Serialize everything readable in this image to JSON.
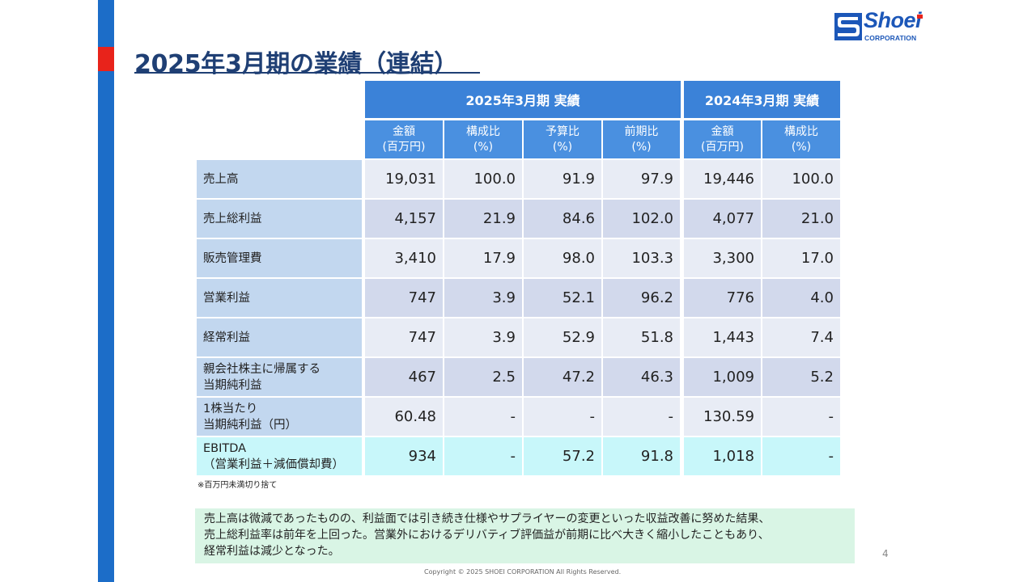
{
  "title": "2025年3月期の業績（連結）",
  "logo": {
    "word": "Shoei",
    "sub": "CORPORATION"
  },
  "table": {
    "group_2025": "2025年3月期 実績",
    "group_2024": "2024年3月期 実績",
    "sub_2025": [
      {
        "l1": "金額",
        "l2": "(百万円)"
      },
      {
        "l1": "構成比",
        "l2": "(%)"
      },
      {
        "l1": "予算比",
        "l2": "(%)"
      },
      {
        "l1": "前期比",
        "l2": "(%)"
      }
    ],
    "sub_2024": [
      {
        "l1": "金額",
        "l2": "(百万円)"
      },
      {
        "l1": "構成比",
        "l2": "(%)"
      }
    ],
    "rows": [
      {
        "label1": "売上高",
        "label2": "",
        "v": [
          "19,031",
          "100.0",
          "91.9",
          "97.9",
          "19,446",
          "100.0"
        ]
      },
      {
        "label1": "売上総利益",
        "label2": "",
        "v": [
          "4,157",
          "21.9",
          "84.6",
          "102.0",
          "4,077",
          "21.0"
        ]
      },
      {
        "label1": "販売管理費",
        "label2": "",
        "v": [
          "3,410",
          "17.9",
          "98.0",
          "103.3",
          "3,300",
          "17.0"
        ]
      },
      {
        "label1": "営業利益",
        "label2": "",
        "v": [
          "747",
          "3.9",
          "52.1",
          "96.2",
          "776",
          "4.0"
        ]
      },
      {
        "label1": "経常利益",
        "label2": "",
        "v": [
          "747",
          "3.9",
          "52.9",
          "51.8",
          "1,443",
          "7.4"
        ]
      },
      {
        "label1": "親会社株主に帰属する",
        "label2": "当期純利益",
        "v": [
          "467",
          "2.5",
          "47.2",
          "46.3",
          "1,009",
          "5.2"
        ]
      },
      {
        "label1": "1株当たり",
        "label2": "当期純利益（円）",
        "v": [
          "60.48",
          "-",
          "-",
          "-",
          "130.59",
          "-"
        ]
      },
      {
        "label1": "EBITDA",
        "label2": "（営業利益＋減価償却費）",
        "v": [
          "934",
          "-",
          "57.2",
          "91.8",
          "1,018",
          "-"
        ]
      }
    ]
  },
  "note": "※百万円未満切り捨て",
  "summary": [
    "売上高は微減であったものの、利益面では引き続き仕様やサプライヤーの変更といった収益改善に努めた結果、",
    "売上総利益率は前年を上回った。営業外におけるデリバティブ評価益が前期に比べ大きく縮小したこともあり、",
    "経常利益は減少となった。"
  ],
  "page_number": "4",
  "copyright": "Copyright © 2025 SHOEI CORPORATION All Rights Reserved.",
  "colors": {
    "accent_blue": "#1c6dc8",
    "accent_red": "#e8231b",
    "header_blue": "#3b82d8",
    "title_navy": "#1f3f74"
  }
}
